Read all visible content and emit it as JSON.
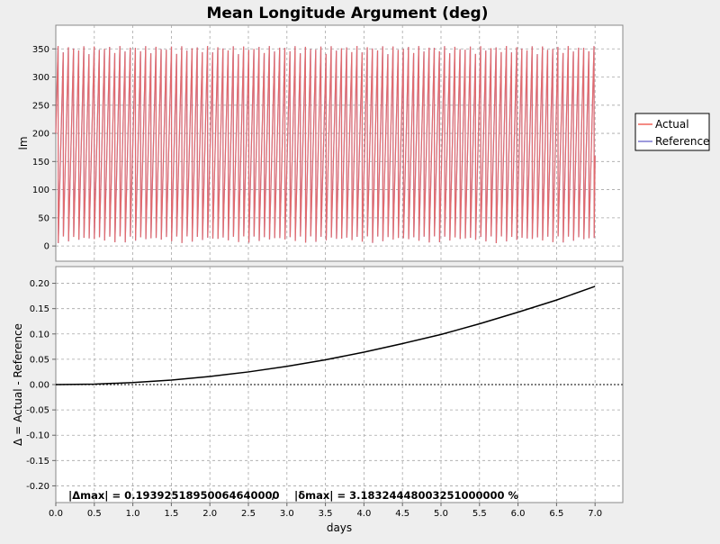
{
  "title": "Mean Longitude Argument (deg)",
  "colors": {
    "background": "#eeeeee",
    "plot_bg": "#ffffff",
    "grid": "#a6a6a6",
    "actual": "#f0645a",
    "reference": "#7a78d0",
    "delta": "#000000"
  },
  "legend": {
    "position": "right",
    "items": [
      {
        "label": "Actual",
        "color": "#f0645a"
      },
      {
        "label": "Reference",
        "color": "#7a78d0"
      }
    ]
  },
  "annotation": {
    "delta_max": "|Δmax| = 0.19392518950064640000",
    "separator": "/",
    "delta_pct_max": "|δmax| = 3.18324448003251000000 %"
  },
  "chart_data": [
    {
      "type": "line",
      "title": "Mean Longitude Argument (deg)",
      "xlabel": "days",
      "ylabel": "lm",
      "xlim": [
        0.0,
        7.36
      ],
      "ylim": [
        -27,
        392
      ],
      "yticks": [
        "0",
        "50",
        "100",
        "150",
        "200",
        "250",
        "300",
        "350"
      ],
      "grid": true,
      "series": [
        {
          "name": "Actual",
          "description": "sawtooth 0–360 deg, ~15 cycles/day",
          "start_y": 200,
          "cycles_per_day": 14.95,
          "end_y": 160
        },
        {
          "name": "Reference",
          "description": "overlaps Actual",
          "start_y": 200,
          "cycles_per_day": 14.95,
          "end_y": 160
        }
      ]
    },
    {
      "type": "line",
      "xlabel": "days",
      "ylabel": "Δ = Actual - Reference",
      "xlim": [
        0.0,
        7.36
      ],
      "ylim": [
        -0.233,
        0.233
      ],
      "xticks": [
        "0.0",
        "0.5",
        "1.0",
        "1.5",
        "2.0",
        "2.5",
        "3.0",
        "3.5",
        "4.0",
        "4.5",
        "5.0",
        "5.5",
        "6.0",
        "6.5",
        "7.0"
      ],
      "yticks": [
        "0.20",
        "0.15",
        "0.10",
        "0.05",
        "0.00",
        "-0.05",
        "-0.10",
        "-0.15",
        "-0.20"
      ],
      "grid": true,
      "series": [
        {
          "x": [
            0.0,
            0.5,
            1.0,
            1.5,
            2.0,
            2.5,
            3.0,
            3.5,
            4.0,
            4.5,
            5.0,
            5.5,
            6.0,
            6.5,
            7.0
          ],
          "y": [
            0.0,
            0.001,
            0.004,
            0.009,
            0.016,
            0.025,
            0.036,
            0.049,
            0.064,
            0.081,
            0.099,
            0.12,
            0.143,
            0.167,
            0.194
          ]
        }
      ]
    }
  ]
}
